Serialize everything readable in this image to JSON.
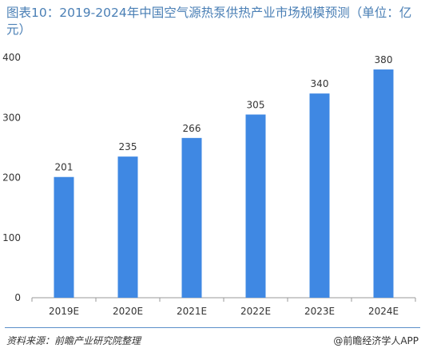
{
  "title": "图表10：2019-2024年中国空气源热泵供热产业市场规模预测（单位：亿元）",
  "footer": {
    "source": "资料来源：前瞻产业研究院整理",
    "brand": "@前瞻经济学人APP"
  },
  "colors": {
    "bar": "#3f88e3",
    "title": "#4a7fb5",
    "axis": "#999999"
  },
  "chart_data": {
    "type": "bar",
    "categories": [
      "2019E",
      "2020E",
      "2021E",
      "2022E",
      "2023E",
      "2024E"
    ],
    "values": [
      201,
      235,
      266,
      305,
      340,
      380
    ],
    "ylim": [
      0,
      400
    ],
    "yticks": [
      0,
      100,
      200,
      300,
      400
    ],
    "grid": false,
    "xlabel": "",
    "ylabel": ""
  }
}
